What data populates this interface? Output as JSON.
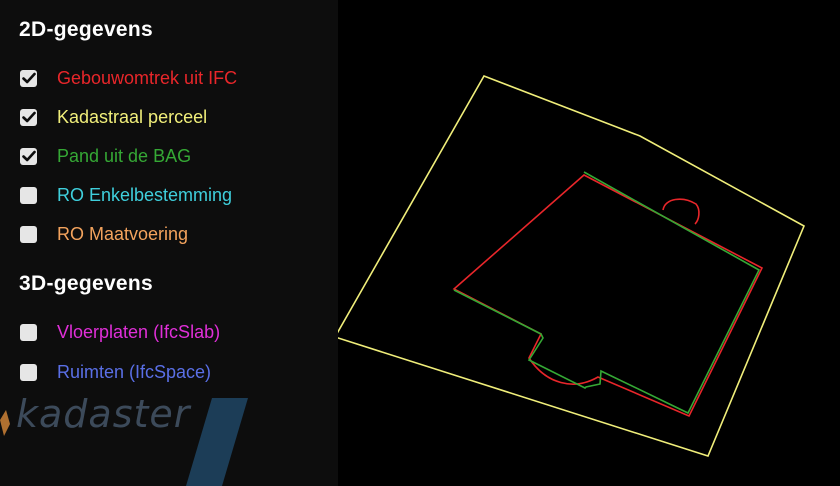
{
  "sections": [
    {
      "title": "2D-gegevens",
      "layers": [
        {
          "label": "Gebouwomtrek uit IFC",
          "checked": true,
          "color": "#e8262a"
        },
        {
          "label": "Kadastraal perceel",
          "checked": true,
          "color": "#f0ee7a"
        },
        {
          "label": "Pand uit de BAG",
          "checked": true,
          "color": "#35a835"
        },
        {
          "label": "RO Enkelbestemming",
          "checked": false,
          "color": "#3fcfdc"
        },
        {
          "label": "RO Maatvoering",
          "checked": false,
          "color": "#f3a35d"
        }
      ]
    },
    {
      "title": "3D-gegevens",
      "layers": [
        {
          "label": "Vloerplaten (IfcSlab)",
          "checked": false,
          "color": "#e02fd8"
        },
        {
          "label": "Ruimten (IfcSpace)",
          "checked": false,
          "color": "#5a6fe6"
        }
      ]
    }
  ],
  "logo": {
    "text": "kadaster",
    "icon": "kadaster-logo-icon"
  },
  "icons": {
    "checkbox": "checkbox-icon",
    "checkmark": "checkmark-icon"
  },
  "colors": {
    "panel_background": "#0d0d0d",
    "viewport_background": "#000000",
    "parcel_outline": "#f0ee7a",
    "building_ifc_outline": "#e8262a",
    "building_bag_outline": "#35a835"
  }
}
